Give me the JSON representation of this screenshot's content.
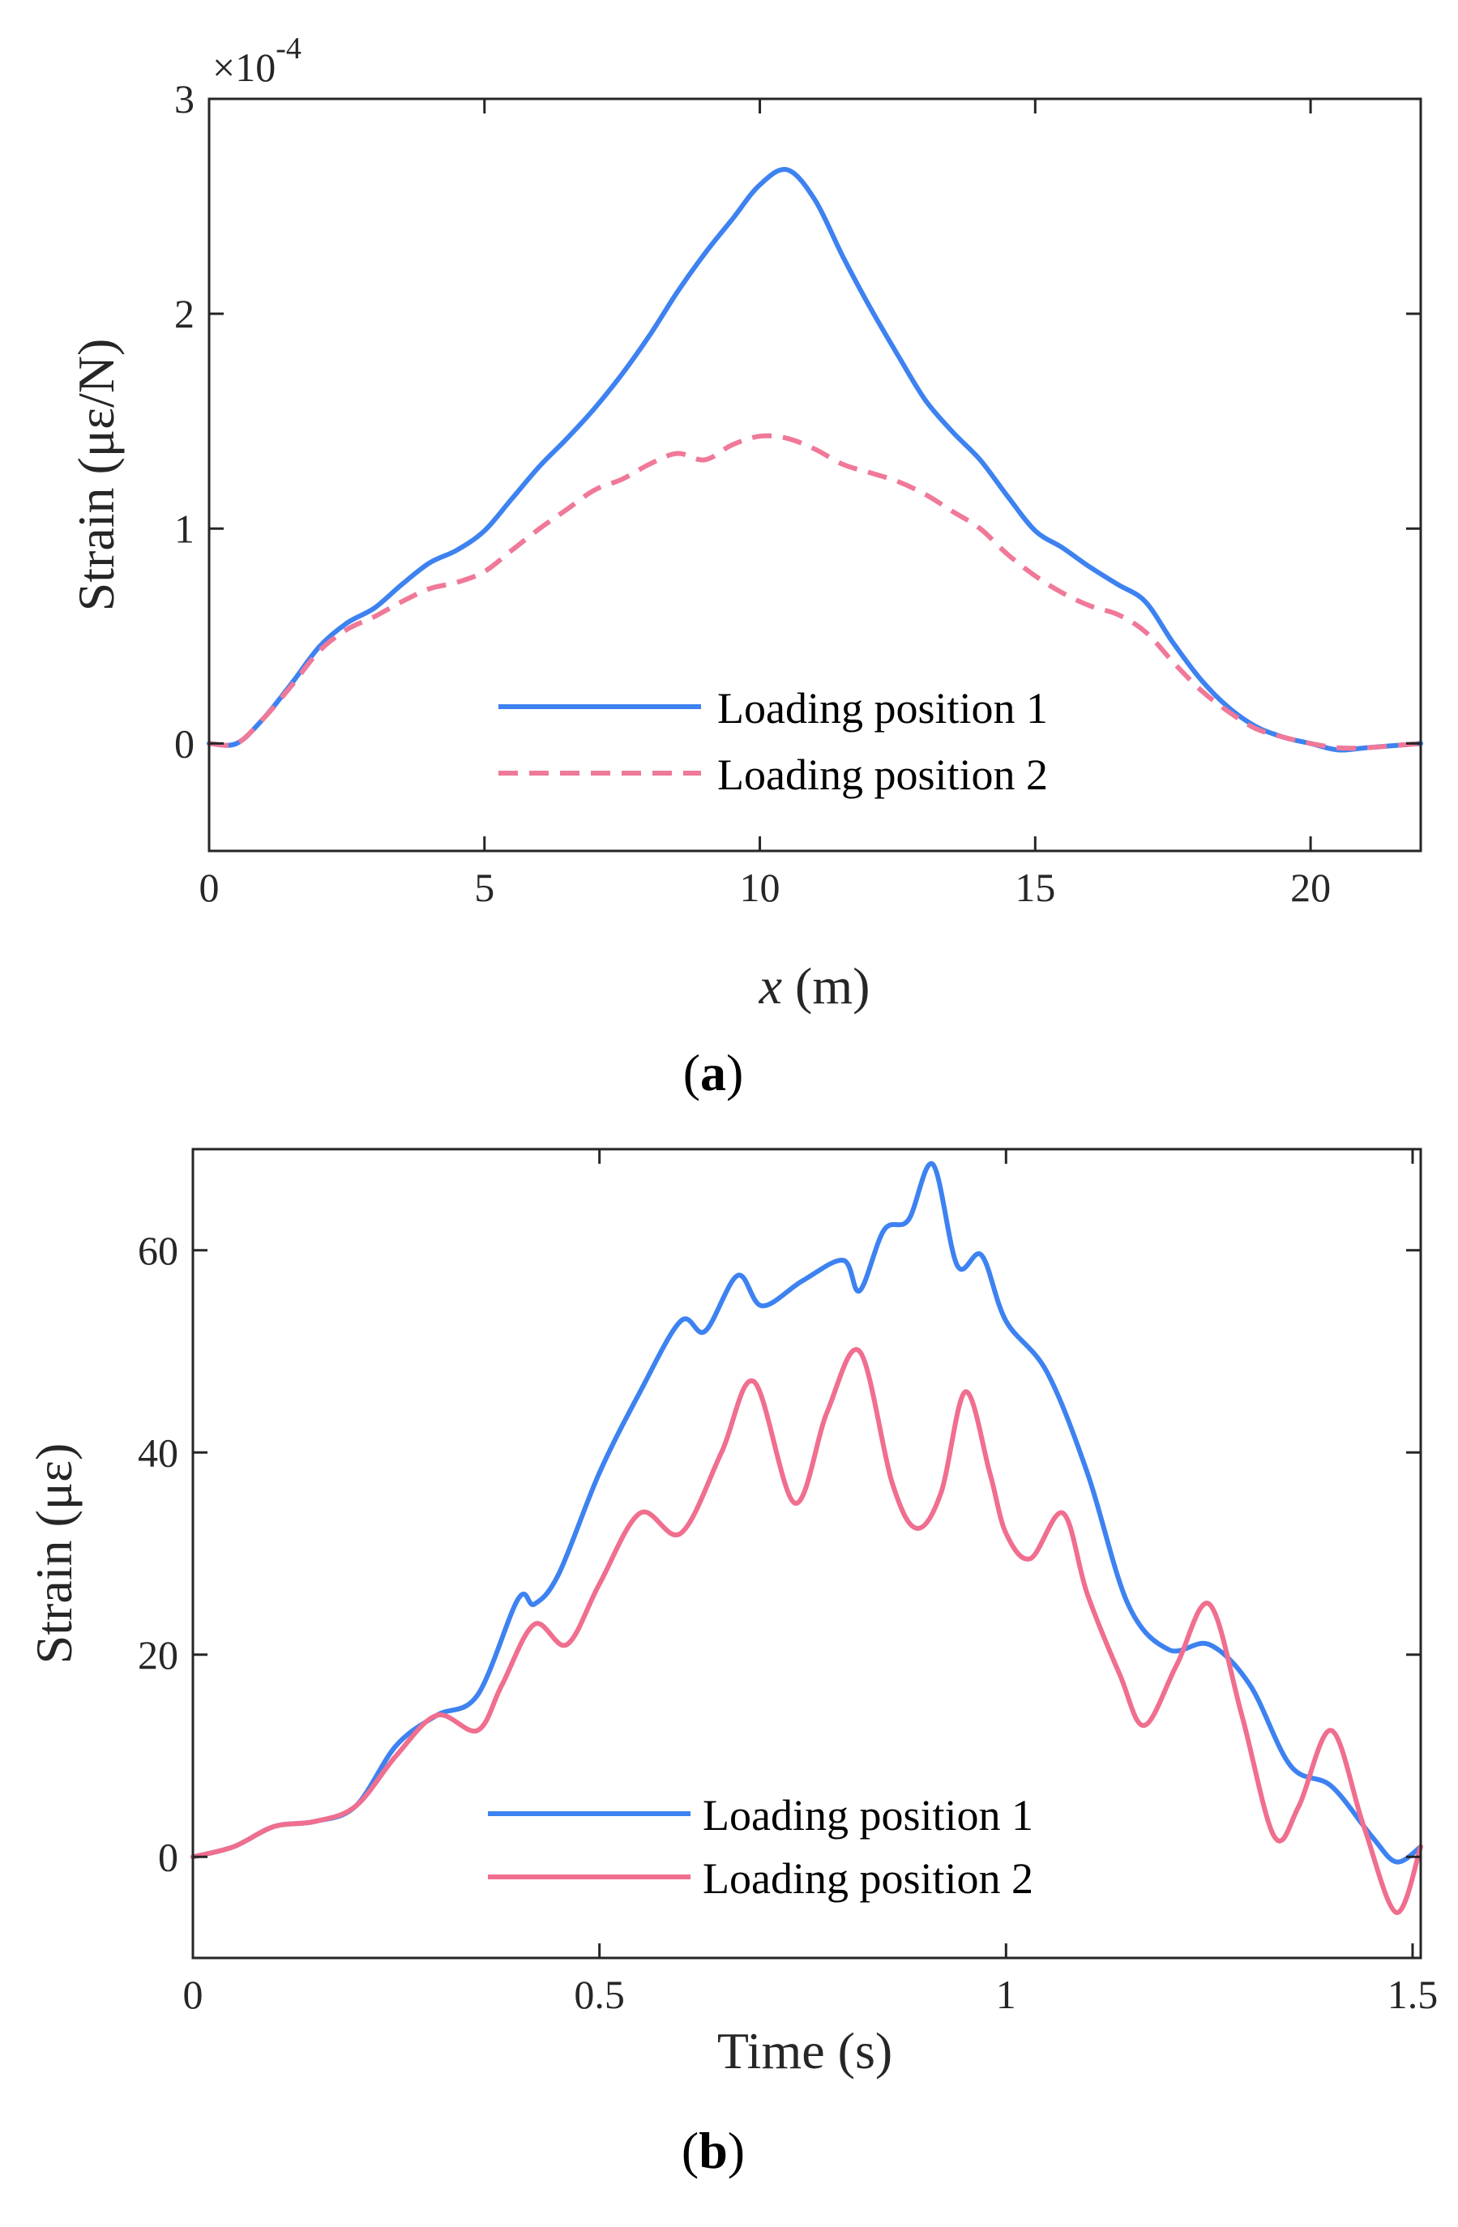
{
  "chart_data": [
    {
      "type": "line",
      "panel_label": "a",
      "xlabel": "x (m)",
      "xlabel_var": "x",
      "xlabel_unit": " (m)",
      "ylabel": "Strain (με/N)",
      "y_exponent_text": "×10",
      "y_exponent_power": "-4",
      "xlim": [
        0,
        22
      ],
      "ylim": [
        -0.5,
        3
      ],
      "xticks": [
        0,
        5,
        10,
        15,
        20
      ],
      "yticks": [
        0,
        1,
        2,
        3
      ],
      "xtick_labels": [
        "0",
        "5",
        "10",
        "15",
        "20"
      ],
      "ytick_labels": [
        "0",
        "1",
        "2",
        "3"
      ],
      "grid": false,
      "legend_position": "bottom-center",
      "series": [
        {
          "name": "Loading position 1",
          "color": "#3d82f0",
          "dash": "solid",
          "x": [
            0,
            0.5,
            1,
            1.5,
            2,
            2.5,
            3,
            3.5,
            4,
            4.5,
            5,
            5.5,
            6,
            6.5,
            7,
            7.5,
            8,
            8.5,
            9,
            9.5,
            10,
            10.5,
            11,
            11.5,
            12,
            12.5,
            13,
            13.5,
            14,
            14.5,
            15,
            15.5,
            16,
            16.5,
            17,
            17.5,
            18,
            18.5,
            19,
            19.5,
            20,
            20.5,
            21,
            21.5,
            22
          ],
          "y": [
            0,
            0,
            0.12,
            0.28,
            0.45,
            0.56,
            0.63,
            0.74,
            0.84,
            0.9,
            0.99,
            1.14,
            1.29,
            1.42,
            1.56,
            1.72,
            1.9,
            2.1,
            2.28,
            2.44,
            2.6,
            2.67,
            2.53,
            2.27,
            2.03,
            1.81,
            1.6,
            1.45,
            1.32,
            1.15,
            0.99,
            0.91,
            0.82,
            0.74,
            0.66,
            0.47,
            0.3,
            0.17,
            0.08,
            0.03,
            0.0,
            -0.03,
            -0.02,
            -0.01,
            0.0
          ]
        },
        {
          "name": "Loading position 2",
          "color": "#f07898",
          "dash": "dashed",
          "x": [
            0,
            0.5,
            1,
            1.5,
            2,
            2.5,
            3,
            3.5,
            4,
            4.5,
            5,
            5.5,
            6,
            6.5,
            7,
            7.5,
            8,
            8.5,
            9,
            9.5,
            10,
            10.5,
            11,
            11.5,
            12,
            12.5,
            13,
            13.5,
            14,
            14.5,
            15,
            15.5,
            16,
            16.5,
            17,
            17.5,
            18,
            18.5,
            19,
            19.5,
            20,
            20.5,
            21,
            21.5,
            22
          ],
          "y": [
            0,
            0,
            0.12,
            0.27,
            0.43,
            0.53,
            0.59,
            0.66,
            0.72,
            0.75,
            0.8,
            0.9,
            1.0,
            1.09,
            1.18,
            1.23,
            1.3,
            1.35,
            1.32,
            1.39,
            1.43,
            1.42,
            1.37,
            1.3,
            1.26,
            1.22,
            1.16,
            1.08,
            1.0,
            0.88,
            0.78,
            0.7,
            0.64,
            0.6,
            0.52,
            0.38,
            0.25,
            0.15,
            0.07,
            0.03,
            0.0,
            -0.02,
            -0.02,
            -0.01,
            0.0
          ]
        }
      ]
    },
    {
      "type": "line",
      "panel_label": "b",
      "xlabel": "Time (s)",
      "ylabel": "Strain (με)",
      "xlim": [
        0,
        1.51
      ],
      "ylim": [
        -10,
        70
      ],
      "xticks": [
        0,
        0.5,
        1,
        1.5
      ],
      "yticks": [
        0,
        20,
        40,
        60
      ],
      "xtick_labels": [
        "0",
        "0.5",
        "1",
        "1.5"
      ],
      "ytick_labels": [
        "0",
        "20",
        "40",
        "60"
      ],
      "grid": false,
      "legend_position": "bottom-center",
      "series": [
        {
          "name": "Loading position 1",
          "color": "#3d82f0",
          "dash": "solid",
          "x": [
            0,
            0.05,
            0.1,
            0.15,
            0.2,
            0.25,
            0.3,
            0.35,
            0.4,
            0.42,
            0.45,
            0.5,
            0.55,
            0.6,
            0.63,
            0.67,
            0.7,
            0.75,
            0.8,
            0.82,
            0.85,
            0.88,
            0.91,
            0.94,
            0.97,
            1.0,
            1.05,
            1.1,
            1.15,
            1.2,
            1.25,
            1.3,
            1.35,
            1.4,
            1.45,
            1.48,
            1.51
          ],
          "y": [
            0,
            1,
            3,
            3.5,
            5,
            11,
            14,
            16,
            25.5,
            25,
            28,
            38,
            46,
            53,
            52,
            57.5,
            54.5,
            57,
            59,
            56,
            62,
            63,
            68.5,
            58.5,
            59.5,
            53,
            48,
            38,
            25,
            20.5,
            21,
            17,
            9,
            7,
            2,
            -0.5,
            1
          ]
        },
        {
          "name": "Loading position 2",
          "color": "#f06e8e",
          "dash": "solid",
          "x": [
            0,
            0.05,
            0.1,
            0.15,
            0.2,
            0.25,
            0.3,
            0.35,
            0.38,
            0.42,
            0.46,
            0.5,
            0.55,
            0.6,
            0.65,
            0.69,
            0.74,
            0.78,
            0.82,
            0.86,
            0.89,
            0.92,
            0.95,
            0.98,
            1.0,
            1.03,
            1.07,
            1.1,
            1.14,
            1.17,
            1.21,
            1.25,
            1.29,
            1.33,
            1.36,
            1.4,
            1.44,
            1.48,
            1.51
          ],
          "y": [
            0,
            1,
            3,
            3.5,
            5,
            10,
            14,
            12.5,
            17,
            23,
            21,
            27,
            34,
            32,
            40,
            47,
            35,
            44,
            50,
            37,
            32.5,
            36,
            46,
            38,
            32,
            29.5,
            34,
            26,
            18,
            13,
            19,
            25,
            14,
            2,
            5,
            12.5,
            3,
            -5.5,
            1
          ]
        }
      ]
    }
  ]
}
